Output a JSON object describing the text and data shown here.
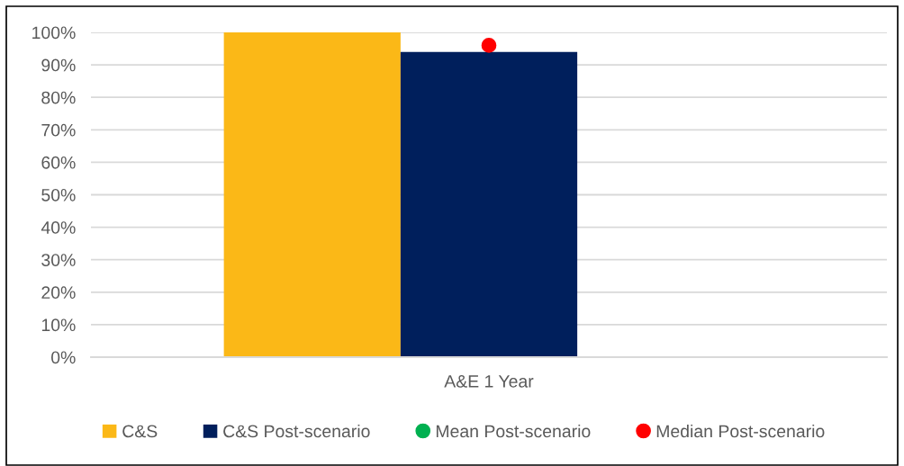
{
  "chart_data": {
    "type": "bar",
    "categories": [
      "A&E 1 Year"
    ],
    "series": [
      {
        "name": "C&S",
        "color": "#fbb817",
        "values": [
          100
        ]
      },
      {
        "name": "C&S Post-scenario",
        "color": "#001f5c",
        "values": [
          94
        ]
      },
      {
        "values": [
          null
        ]
      },
      {
        "name": "Mean Post-scenario",
        "type": "scatter",
        "color": "#00b050",
        "values": [
          null
        ]
      },
      {
        "name": "Median Post-scenario",
        "type": "scatter",
        "color": "#ff0000",
        "x": [
          "A&E 1 Year"
        ],
        "values": [
          96
        ]
      }
    ],
    "marker": "circle",
    "ylim": [
      0,
      100
    ],
    "yticks": [
      {
        "value": 0,
        "label": "0%"
      },
      {
        "value": 10,
        "label": "10%"
      },
      {
        "value": 20,
        "label": "20%"
      },
      {
        "value": 30,
        "label": "30%"
      },
      {
        "value": 40,
        "label": "40%"
      },
      {
        "value": 50,
        "label": "50%"
      },
      {
        "value": 60,
        "label": "60%"
      },
      {
        "value": 70,
        "label": "70%"
      },
      {
        "value": 80,
        "label": "80%"
      },
      {
        "value": 90,
        "label": "90%"
      },
      {
        "value": 100,
        "label": "100%"
      }
    ],
    "grid": "y",
    "legend": "bottom"
  }
}
